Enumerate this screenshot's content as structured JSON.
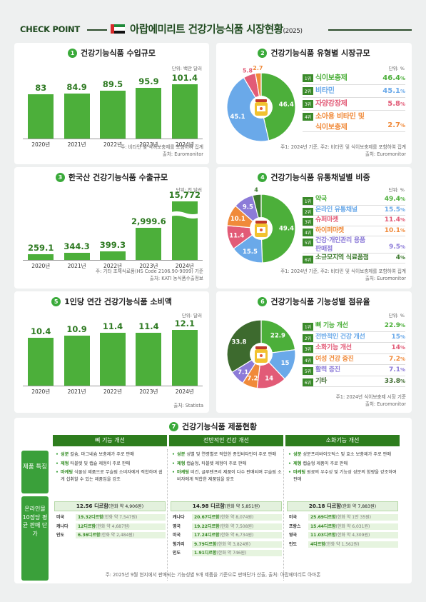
{
  "header": {
    "check_point": "CHECK POINT",
    "title": "아랍에미리트 건강기능식품 시장현황",
    "year": "(2025)"
  },
  "panels": {
    "p1": {
      "num": "1",
      "title": "건강기능식품 수입규모",
      "unit": "단위: 백만 달러",
      "note1": "주: 비타민 및 식이보충제를 포함하여 집계",
      "note2": "출처: Euromonitor"
    },
    "p2": {
      "num": "2",
      "title": "건강기능식품 유형별 시장규모",
      "unit": "단위: %",
      "note1": "주1: 2024년 기준, 주2: 비타민 및 식이보충제를 포함하여 집계",
      "note2": "출처: Euromonitor"
    },
    "p3": {
      "num": "3",
      "title": "한국산 건강기능식품 수출규모",
      "unit": "단위: 천 달러",
      "note1": "주: 기타 조제식료품(HS Code 2106.90-9099) 기준",
      "note2": "출처: KATI 농식품수출정보"
    },
    "p4": {
      "num": "4",
      "title": "건강기능식품 유통채널별 비중",
      "unit": "단위: %",
      "note1": "주1: 2024년 기준, 주2: 비타민 및 식이보충제를 포함하여 집계",
      "note2": "출처: Euromonitor"
    },
    "p5": {
      "num": "5",
      "title": "1인당 연간 건강기능식품 소비액",
      "unit": "단위: 달러",
      "note1": "출처: Statista"
    },
    "p6": {
      "num": "6",
      "title": "건강기능식품 기능성별 점유율",
      "unit": "단위: %",
      "note1": "주1: 2024년 식이보충제 시장 기준",
      "note2": "출처: Euromonitor"
    },
    "p7": {
      "num": "7",
      "title": "건강기능식품 제품현황"
    }
  },
  "chart_data": [
    {
      "type": "bar",
      "title": "건강기능식품 수입규모",
      "unit": "백만 달러",
      "categories": [
        "2020년",
        "2021년",
        "2022년",
        "2023년",
        "2024년"
      ],
      "values": [
        83,
        84.9,
        89.5,
        95.9,
        101.4
      ],
      "labels": [
        "83",
        "84.9",
        "89.5",
        "95.9",
        "101.4"
      ],
      "ylim": [
        0,
        110
      ]
    },
    {
      "type": "pie",
      "title": "건강기능식품 유형별 시장규모",
      "unit": "%",
      "slices": [
        {
          "rank": "1위",
          "name": "식이보충제",
          "value": 46.4,
          "label": "46.4",
          "color": "#4caf3a"
        },
        {
          "rank": "2위",
          "name": "비타민",
          "value": 45.1,
          "label": "45.1",
          "color": "#6aa9e9"
        },
        {
          "rank": "3위",
          "name": "자양강장제",
          "value": 5.8,
          "label": "5.8",
          "color": "#e25b77"
        },
        {
          "rank": "4위",
          "name": "소아용 비타민 및 식이보충제",
          "value": 2.7,
          "label": "2.7",
          "color": "#f08a3a"
        }
      ]
    },
    {
      "type": "bar",
      "title": "한국산 건강기능식품 수출규모",
      "unit": "천 달러",
      "categories": [
        "2020년",
        "2021년",
        "2022년",
        "2023년",
        "2024년"
      ],
      "values": [
        259.1,
        344.3,
        399.3,
        2999.6,
        15772
      ],
      "labels": [
        "259.1",
        "344.3",
        "399.3",
        "2,999.6",
        "15,772"
      ],
      "axis_break": true
    },
    {
      "type": "pie",
      "title": "건강기능식품 유통채널별 비중",
      "unit": "%",
      "slices": [
        {
          "rank": "1위",
          "name": "약국",
          "value": 49.4,
          "label": "49.4",
          "color": "#4caf3a"
        },
        {
          "rank": "2위",
          "name": "온라인 유통채널",
          "value": 15.5,
          "label": "15.5",
          "color": "#6aa9e9"
        },
        {
          "rank": "3위",
          "name": "슈퍼마켓",
          "value": 11.4,
          "label": "11.4",
          "color": "#e25b77"
        },
        {
          "rank": "4위",
          "name": "하이퍼마켓",
          "value": 10.1,
          "label": "10.1",
          "color": "#f08a3a"
        },
        {
          "rank": "5위",
          "name": "건강·개인관리 용품 판매점",
          "value": 9.5,
          "label": "9.5",
          "color": "#8c7bd8"
        },
        {
          "rank": "6위",
          "name": "소규모지역 식료품점",
          "value": 4,
          "label": "4",
          "color": "#3d7a2e"
        }
      ]
    },
    {
      "type": "bar",
      "title": "1인당 연간 건강기능식품 소비액",
      "unit": "달러",
      "categories": [
        "2020년",
        "2021년",
        "2022년",
        "2023년",
        "2024년"
      ],
      "values": [
        10.4,
        10.9,
        11.4,
        11.4,
        12.1
      ],
      "labels": [
        "10.4",
        "10.9",
        "11.4",
        "11.4",
        "12.1"
      ],
      "ylim": [
        0,
        13
      ]
    },
    {
      "type": "pie",
      "title": "건강기능식품 기능성별 점유율",
      "unit": "%",
      "slices": [
        {
          "rank": "1위",
          "name": "뼈 기능 개선",
          "value": 22.9,
          "label": "22.9",
          "color": "#4caf3a"
        },
        {
          "rank": "2위",
          "name": "전반적인 건강 개선",
          "value": 15,
          "label": "15",
          "color": "#6aa9e9"
        },
        {
          "rank": "3위",
          "name": "소화기능 개선",
          "value": 14,
          "label": "14",
          "color": "#e25b77"
        },
        {
          "rank": "4위",
          "name": "여성 건강 증진",
          "value": 7.2,
          "label": "7.2",
          "color": "#f08a3a"
        },
        {
          "rank": "5위",
          "name": "활력 증진",
          "value": 7.1,
          "label": "7.1",
          "color": "#8c7bd8"
        },
        {
          "rank": "6위",
          "name": "기타",
          "value": 33.8,
          "label": "33.8",
          "color": "#3d6a2e"
        }
      ]
    }
  ],
  "products": {
    "row_feature": "제품 특징",
    "row_price": "온라인몰 10정당 평균 판매 단가",
    "columns": [
      {
        "header": "뼈 기능 개선",
        "features": [
          {
            "tag": "성분",
            "text": "칼슘, 마그네슘 보충제가 주로 판매"
          },
          {
            "tag": "제형",
            "text": "타블렛 및 캡슐 제형이 주로 판매"
          },
          {
            "tag": "마케팅",
            "text": "식물성 제품으로 무슬림 소비자에게 적합하며 쉽게 섭취할 수 있는 제품임을 강조"
          }
        ],
        "avg": "12.56 디르함",
        "avg_krw": "(한화 약 4,906원)",
        "prices": [
          {
            "country": "미국",
            "price": "19.32디르함",
            "krw": "(한화 약 7,547원)"
          },
          {
            "country": "캐나다",
            "price": "12디르함",
            "krw": "(한화 약 4,687원)"
          },
          {
            "country": "인도",
            "price": "6.36디르함",
            "krw": "(한화 약 2,484원)"
          }
        ]
      },
      {
        "header": "전반적인 건강 개선",
        "features": [
          {
            "tag": "성분",
            "text": "성별 및 연령별로 적합한 종합비타민이 주로 판매"
          },
          {
            "tag": "제형",
            "text": "캡슐형, 타블렛 제형이 주로 판매"
          },
          {
            "tag": "마케팅",
            "text": "비건, 글루텐프리 제품이 다수 판매되며 무슬림 소비자에게 적합한 제품임을 강조"
          }
        ],
        "avg": "14.98 디르함",
        "avg_krw": "(한화 약 5,851원)",
        "prices": [
          {
            "country": "캐나다",
            "price": "20.67디르함",
            "krw": "(한화 약 8,074원)"
          },
          {
            "country": "영국",
            "price": "19.22디르함",
            "krw": "(한화 약 7,508원)"
          },
          {
            "country": "미국",
            "price": "17.24디르함",
            "krw": "(한화 약 6,734원)"
          },
          {
            "country": "헝가리",
            "price": "9.79디르함",
            "krw": "(한화 약 3,824원)"
          },
          {
            "country": "인도",
            "price": "1.91디르함",
            "krw": "(한화 약 746원)"
          }
        ]
      },
      {
        "header": "소화기능 개선",
        "features": [
          {
            "tag": "성분",
            "text": "성분프리바이오틱스 및 효소 보충제가 주로 판매"
          },
          {
            "tag": "제형",
            "text": "캡슐형 제품이 주로 판매"
          },
          {
            "tag": "마케팅",
            "text": "원료의 우수성 및 기능성 성분의 함량을 강조하여 판매"
          }
        ],
        "avg": "20.18 디르함",
        "avg_krw": "(한화 약 7,883원)",
        "prices": [
          {
            "country": "미국",
            "price": "25.69디르함",
            "krw": "(한화 약 1만 35원)"
          },
          {
            "country": "프랑스",
            "price": "15.44디르함",
            "krw": "(한화 약 6,031원)"
          },
          {
            "country": "영국",
            "price": "11.03디르함",
            "krw": "(한화 약 4,309원)"
          },
          {
            "country": "인도",
            "price": "4디르함",
            "krw": "(한화 약 1,562원)"
          }
        ]
      }
    ],
    "footnote": "주: 2025년 9월 현지에서 판매되는 기능성별 9개 제품을 기준으로 판매단가 산출, 출처: 아랍에미리트 아마존"
  },
  "colors": {
    "accent": "#4caf3a",
    "dark_green": "#1f4a1f",
    "bg": "#eef0f0"
  }
}
